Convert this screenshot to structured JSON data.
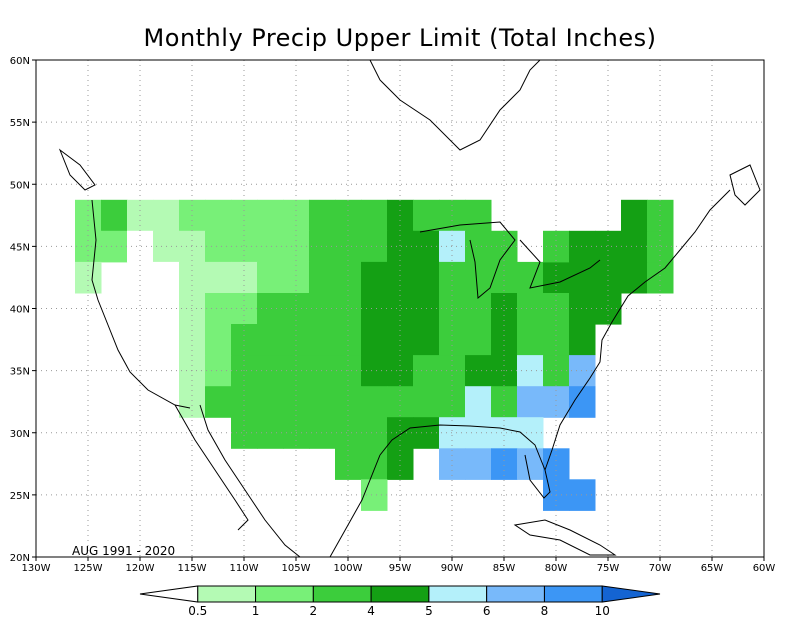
{
  "title": "Monthly Precip Upper Limit (Total Inches)",
  "period_label": "AUG 1991 - 2020",
  "lon_labels": [
    "130W",
    "125W",
    "120W",
    "115W",
    "110W",
    "105W",
    "100W",
    "95W",
    "90W",
    "85W",
    "80W",
    "75W",
    "70W",
    "65W",
    "60W"
  ],
  "lat_labels": [
    "60N",
    "55N",
    "50N",
    "45N",
    "40N",
    "35N",
    "30N",
    "25N",
    "20N"
  ],
  "colorbar": {
    "labels": [
      "0.5",
      "1",
      "2",
      "4",
      "5",
      "6",
      "8",
      "10"
    ],
    "colors": [
      "#ffffff",
      "#b4fab4",
      "#78f078",
      "#3ccd3c",
      "#14a014",
      "#b4f0fa",
      "#78b9fa",
      "#3c96f5",
      "#1464d2"
    ]
  },
  "chart_data": {
    "type": "heatmap",
    "title": "Monthly Precip Upper Limit (Total Inches)",
    "period": "AUG 1991 - 2020",
    "xlim": [
      -130,
      -60
    ],
    "ylim": [
      20,
      60
    ],
    "grid": true,
    "cell_size_deg": 2.5,
    "levels": [
      0.5,
      1,
      2,
      4,
      5,
      6,
      8,
      10
    ],
    "cells": [
      {
        "lon": -125,
        "lat": 47.5,
        "v": 1.5
      },
      {
        "lon": -122.5,
        "lat": 47.5,
        "v": 2.5
      },
      {
        "lon": -125,
        "lat": 45,
        "v": 1.5
      },
      {
        "lon": -122.5,
        "lat": 45,
        "v": 1
      },
      {
        "lon": -125,
        "lat": 42.5,
        "v": 0.7
      },
      {
        "lon": -120,
        "lat": 47.5,
        "v": 0.8
      },
      {
        "lon": -117.5,
        "lat": 47.5,
        "v": 0.8
      },
      {
        "lon": -120,
        "lat": 45,
        "v": 0.3
      },
      {
        "lon": -117.5,
        "lat": 45,
        "v": 0.8
      },
      {
        "lon": -115,
        "lat": 47.5,
        "v": 1.5
      },
      {
        "lon": -112.5,
        "lat": 47.5,
        "v": 1.5
      },
      {
        "lon": -110,
        "lat": 47.5,
        "v": 1.5
      },
      {
        "lon": -107.5,
        "lat": 47.5,
        "v": 1.5
      },
      {
        "lon": -105,
        "lat": 47.5,
        "v": 1.5
      },
      {
        "lon": -102.5,
        "lat": 47.5,
        "v": 3
      },
      {
        "lon": -100,
        "lat": 47.5,
        "v": 3
      },
      {
        "lon": -97.5,
        "lat": 47.5,
        "v": 3
      },
      {
        "lon": -95,
        "lat": 47.5,
        "v": 4.5
      },
      {
        "lon": -92.5,
        "lat": 47.5,
        "v": 3
      },
      {
        "lon": -90,
        "lat": 47.5,
        "v": 3
      },
      {
        "lon": -87.5,
        "lat": 47.5,
        "v": 3
      },
      {
        "lon": -115,
        "lat": 45,
        "v": 0.8
      },
      {
        "lon": -112.5,
        "lat": 45,
        "v": 1.5
      },
      {
        "lon": -110,
        "lat": 45,
        "v": 1.5
      },
      {
        "lon": -107.5,
        "lat": 45,
        "v": 1.5
      },
      {
        "lon": -105,
        "lat": 45,
        "v": 1.5
      },
      {
        "lon": -102.5,
        "lat": 45,
        "v": 3
      },
      {
        "lon": -100,
        "lat": 45,
        "v": 3
      },
      {
        "lon": -97.5,
        "lat": 45,
        "v": 3
      },
      {
        "lon": -95,
        "lat": 45,
        "v": 4.5
      },
      {
        "lon": -92.5,
        "lat": 45,
        "v": 4.5
      },
      {
        "lon": -90,
        "lat": 45,
        "v": 5.5
      },
      {
        "lon": -87.5,
        "lat": 45,
        "v": 3
      },
      {
        "lon": -85,
        "lat": 45,
        "v": 3
      },
      {
        "lon": -117.5,
        "lat": 42.5,
        "v": 0.3
      },
      {
        "lon": -115,
        "lat": 42.5,
        "v": 0.8
      },
      {
        "lon": -112.5,
        "lat": 42.5,
        "v": 0.8
      },
      {
        "lon": -110,
        "lat": 42.5,
        "v": 0.8
      },
      {
        "lon": -107.5,
        "lat": 42.5,
        "v": 1.5
      },
      {
        "lon": -105,
        "lat": 42.5,
        "v": 1.5
      },
      {
        "lon": -102.5,
        "lat": 42.5,
        "v": 3
      },
      {
        "lon": -100,
        "lat": 42.5,
        "v": 3
      },
      {
        "lon": -97.5,
        "lat": 42.5,
        "v": 4.5
      },
      {
        "lon": -95,
        "lat": 42.5,
        "v": 4.5
      },
      {
        "lon": -92.5,
        "lat": 42.5,
        "v": 4.5
      },
      {
        "lon": -90,
        "lat": 42.5,
        "v": 3
      },
      {
        "lon": -87.5,
        "lat": 42.5,
        "v": 3
      },
      {
        "lon": -85,
        "lat": 42.5,
        "v": 3
      },
      {
        "lon": -82.5,
        "lat": 42.5,
        "v": 3
      },
      {
        "lon": -80,
        "lat": 42.5,
        "v": 4.5
      },
      {
        "lon": -77.5,
        "lat": 42.5,
        "v": 4.5
      },
      {
        "lon": -75,
        "lat": 42.5,
        "v": 4.5
      },
      {
        "lon": -72.5,
        "lat": 42.5,
        "v": 4.5
      },
      {
        "lon": -70,
        "lat": 42.5,
        "v": 3
      },
      {
        "lon": -80,
        "lat": 45,
        "v": 3
      },
      {
        "lon": -77.5,
        "lat": 45,
        "v": 4.5
      },
      {
        "lon": -75,
        "lat": 45,
        "v": 4.5
      },
      {
        "lon": -72.5,
        "lat": 45,
        "v": 4.5
      },
      {
        "lon": -70,
        "lat": 45,
        "v": 3
      },
      {
        "lon": -72.5,
        "lat": 47.5,
        "v": 4.5
      },
      {
        "lon": -70,
        "lat": 47.5,
        "v": 3
      },
      {
        "lon": -117.5,
        "lat": 40,
        "v": 0.3
      },
      {
        "lon": -115,
        "lat": 40,
        "v": 0.8
      },
      {
        "lon": -112.5,
        "lat": 40,
        "v": 1.5
      },
      {
        "lon": -110,
        "lat": 40,
        "v": 1.5
      },
      {
        "lon": -107.5,
        "lat": 40,
        "v": 3
      },
      {
        "lon": -105,
        "lat": 40,
        "v": 3
      },
      {
        "lon": -102.5,
        "lat": 40,
        "v": 3
      },
      {
        "lon": -100,
        "lat": 40,
        "v": 3
      },
      {
        "lon": -97.5,
        "lat": 40,
        "v": 4.5
      },
      {
        "lon": -95,
        "lat": 40,
        "v": 4.5
      },
      {
        "lon": -92.5,
        "lat": 40,
        "v": 4.5
      },
      {
        "lon": -90,
        "lat": 40,
        "v": 3
      },
      {
        "lon": -87.5,
        "lat": 40,
        "v": 3
      },
      {
        "lon": -85,
        "lat": 40,
        "v": 4.5
      },
      {
        "lon": -82.5,
        "lat": 40,
        "v": 3
      },
      {
        "lon": -80,
        "lat": 40,
        "v": 3
      },
      {
        "lon": -77.5,
        "lat": 40,
        "v": 4.5
      },
      {
        "lon": -75,
        "lat": 40,
        "v": 4.5
      },
      {
        "lon": -115,
        "lat": 37.5,
        "v": 0.8
      },
      {
        "lon": -112.5,
        "lat": 37.5,
        "v": 1.5
      },
      {
        "lon": -110,
        "lat": 37.5,
        "v": 3
      },
      {
        "lon": -107.5,
        "lat": 37.5,
        "v": 3
      },
      {
        "lon": -105,
        "lat": 37.5,
        "v": 3
      },
      {
        "lon": -102.5,
        "lat": 37.5,
        "v": 3
      },
      {
        "lon": -100,
        "lat": 37.5,
        "v": 3
      },
      {
        "lon": -97.5,
        "lat": 37.5,
        "v": 4.5
      },
      {
        "lon": -95,
        "lat": 37.5,
        "v": 4.5
      },
      {
        "lon": -92.5,
        "lat": 37.5,
        "v": 4.5
      },
      {
        "lon": -90,
        "lat": 37.5,
        "v": 3
      },
      {
        "lon": -87.5,
        "lat": 37.5,
        "v": 3
      },
      {
        "lon": -85,
        "lat": 37.5,
        "v": 4.5
      },
      {
        "lon": -82.5,
        "lat": 37.5,
        "v": 3
      },
      {
        "lon": -80,
        "lat": 37.5,
        "v": 3
      },
      {
        "lon": -77.5,
        "lat": 37.5,
        "v": 4.5
      },
      {
        "lon": -115,
        "lat": 35,
        "v": 0.8
      },
      {
        "lon": -112.5,
        "lat": 35,
        "v": 1.5
      },
      {
        "lon": -110,
        "lat": 35,
        "v": 3
      },
      {
        "lon": -107.5,
        "lat": 35,
        "v": 3
      },
      {
        "lon": -105,
        "lat": 35,
        "v": 3
      },
      {
        "lon": -102.5,
        "lat": 35,
        "v": 3
      },
      {
        "lon": -100,
        "lat": 35,
        "v": 3
      },
      {
        "lon": -97.5,
        "lat": 35,
        "v": 4.5
      },
      {
        "lon": -95,
        "lat": 35,
        "v": 4.5
      },
      {
        "lon": -92.5,
        "lat": 35,
        "v": 3
      },
      {
        "lon": -90,
        "lat": 35,
        "v": 3
      },
      {
        "lon": -87.5,
        "lat": 35,
        "v": 4.5
      },
      {
        "lon": -85,
        "lat": 35,
        "v": 4.5
      },
      {
        "lon": -82.5,
        "lat": 35,
        "v": 5.5
      },
      {
        "lon": -80,
        "lat": 35,
        "v": 3
      },
      {
        "lon": -77.5,
        "lat": 35,
        "v": 7
      },
      {
        "lon": -115,
        "lat": 32.5,
        "v": 0.8
      },
      {
        "lon": -112.5,
        "lat": 32.5,
        "v": 3
      },
      {
        "lon": -110,
        "lat": 32.5,
        "v": 3
      },
      {
        "lon": -107.5,
        "lat": 32.5,
        "v": 3
      },
      {
        "lon": -105,
        "lat": 32.5,
        "v": 3
      },
      {
        "lon": -102.5,
        "lat": 32.5,
        "v": 3
      },
      {
        "lon": -100,
        "lat": 32.5,
        "v": 3
      },
      {
        "lon": -97.5,
        "lat": 32.5,
        "v": 3
      },
      {
        "lon": -95,
        "lat": 32.5,
        "v": 3
      },
      {
        "lon": -92.5,
        "lat": 32.5,
        "v": 3
      },
      {
        "lon": -90,
        "lat": 32.5,
        "v": 3
      },
      {
        "lon": -87.5,
        "lat": 32.5,
        "v": 5.5
      },
      {
        "lon": -85,
        "lat": 32.5,
        "v": 3
      },
      {
        "lon": -82.5,
        "lat": 32.5,
        "v": 7
      },
      {
        "lon": -80,
        "lat": 32.5,
        "v": 7
      },
      {
        "lon": -77.5,
        "lat": 32.5,
        "v": 9
      },
      {
        "lon": -110,
        "lat": 30,
        "v": 3
      },
      {
        "lon": -107.5,
        "lat": 30,
        "v": 3
      },
      {
        "lon": -105,
        "lat": 30,
        "v": 3
      },
      {
        "lon": -102.5,
        "lat": 30,
        "v": 3
      },
      {
        "lon": -100,
        "lat": 30,
        "v": 3
      },
      {
        "lon": -97.5,
        "lat": 30,
        "v": 3
      },
      {
        "lon": -95,
        "lat": 30,
        "v": 4.5
      },
      {
        "lon": -92.5,
        "lat": 30,
        "v": 4.5
      },
      {
        "lon": -90,
        "lat": 30,
        "v": 5.5
      },
      {
        "lon": -87.5,
        "lat": 30,
        "v": 5.5
      },
      {
        "lon": -85,
        "lat": 30,
        "v": 5.5
      },
      {
        "lon": -82.5,
        "lat": 30,
        "v": 5.5
      },
      {
        "lon": -90,
        "lat": 27.5,
        "v": 7
      },
      {
        "lon": -87.5,
        "lat": 27.5,
        "v": 7
      },
      {
        "lon": -85,
        "lat": 27.5,
        "v": 9
      },
      {
        "lon": -82.5,
        "lat": 27.5,
        "v": 7
      },
      {
        "lon": -80,
        "lat": 27.5,
        "v": 9
      },
      {
        "lon": -100,
        "lat": 27.5,
        "v": 3
      },
      {
        "lon": -97.5,
        "lat": 27.5,
        "v": 3
      },
      {
        "lon": -95,
        "lat": 27.5,
        "v": 4.5
      },
      {
        "lon": -97.5,
        "lat": 25,
        "v": 1.5
      },
      {
        "lon": -80,
        "lat": 25,
        "v": 9
      },
      {
        "lon": -77.5,
        "lat": 25,
        "v": 9
      }
    ]
  }
}
